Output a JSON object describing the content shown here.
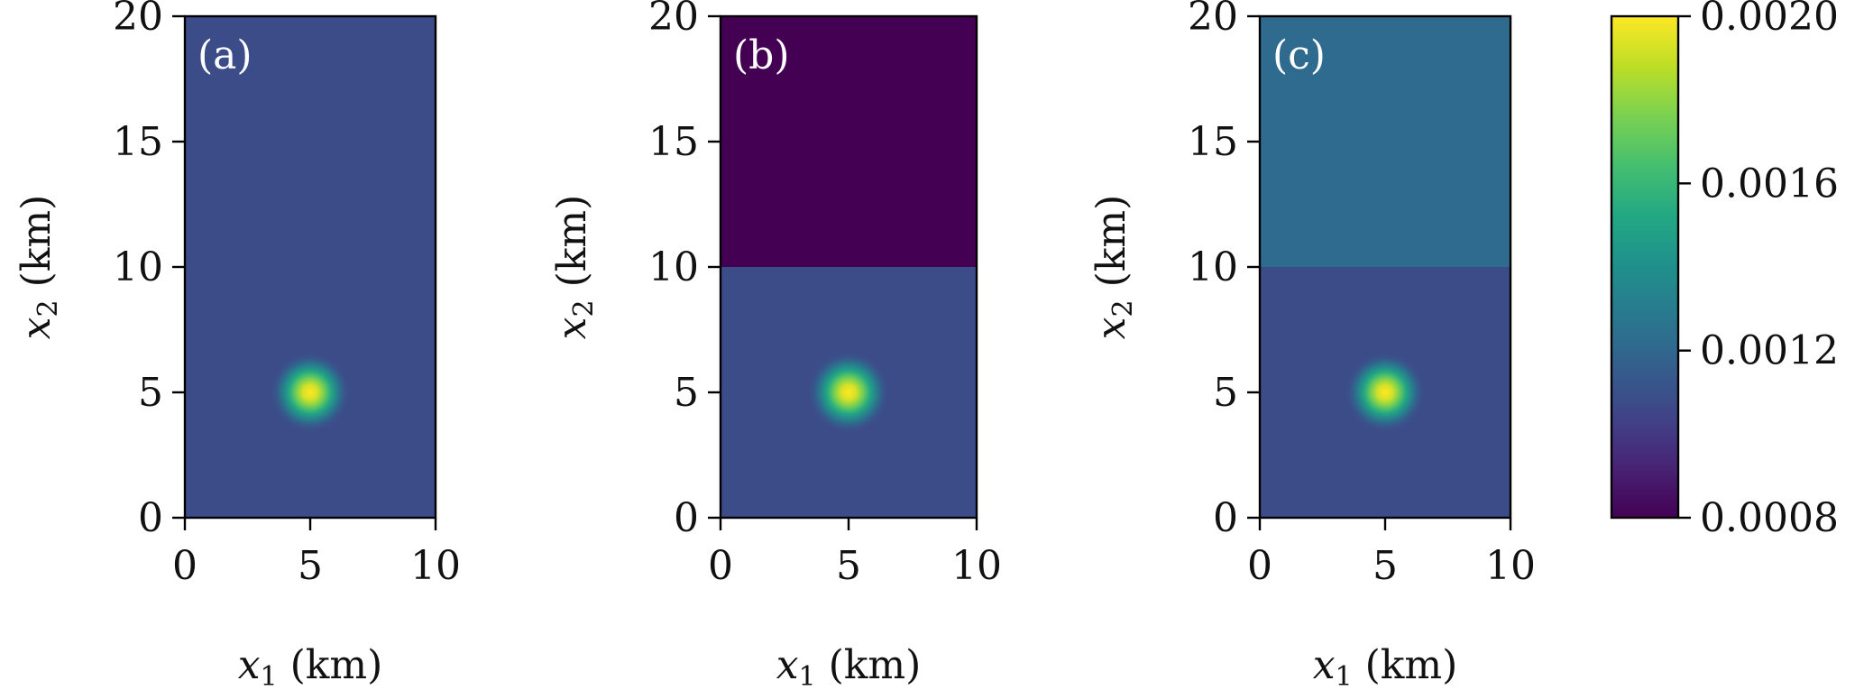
{
  "chart_data": [
    {
      "type": "heatmap",
      "panel_label": "(a)",
      "xlabel_var": "x",
      "xlabel_sub": "1",
      "xlabel_unit": " (km)",
      "ylabel_var": "x",
      "ylabel_sub": "2",
      "ylabel_unit": " (km)",
      "xlim": [
        0,
        10
      ],
      "ylim": [
        0,
        20
      ],
      "xticks": [
        "0",
        "5",
        "10"
      ],
      "yticks": [
        "0",
        "5",
        "10",
        "15",
        "20"
      ],
      "regions": [
        {
          "y_range": [
            0,
            20
          ],
          "value": 0.00108
        }
      ],
      "anomaly": {
        "center": [
          5,
          5
        ],
        "peak_value": 0.002,
        "radius_km": 1.3
      }
    },
    {
      "type": "heatmap",
      "panel_label": "(b)",
      "xlabel_var": "x",
      "xlabel_sub": "1",
      "xlabel_unit": " (km)",
      "ylabel_var": "x",
      "ylabel_sub": "2",
      "ylabel_unit": " (km)",
      "xlim": [
        0,
        10
      ],
      "ylim": [
        0,
        20
      ],
      "xticks": [
        "0",
        "5",
        "10"
      ],
      "yticks": [
        "0",
        "5",
        "10",
        "15",
        "20"
      ],
      "regions": [
        {
          "y_range": [
            0,
            10
          ],
          "value": 0.00108
        },
        {
          "y_range": [
            10,
            20
          ],
          "value": 0.0008
        }
      ],
      "anomaly": {
        "center": [
          5,
          5
        ],
        "peak_value": 0.002,
        "radius_km": 1.3
      }
    },
    {
      "type": "heatmap",
      "panel_label": "(c)",
      "xlabel_var": "x",
      "xlabel_sub": "1",
      "xlabel_unit": " (km)",
      "ylabel_var": "x",
      "ylabel_sub": "2",
      "ylabel_unit": " (km)",
      "xlim": [
        0,
        10
      ],
      "ylim": [
        0,
        20
      ],
      "xticks": [
        "0",
        "5",
        "10"
      ],
      "yticks": [
        "0",
        "5",
        "10",
        "15",
        "20"
      ],
      "regions": [
        {
          "y_range": [
            0,
            10
          ],
          "value": 0.00108
        },
        {
          "y_range": [
            10,
            20
          ],
          "value": 0.00122
        }
      ],
      "anomaly": {
        "center": [
          5,
          5
        ],
        "peak_value": 0.002,
        "radius_km": 1.3
      }
    }
  ],
  "colorbar": {
    "colormap": "viridis",
    "range": [
      0.0008,
      0.002
    ],
    "ticks": [
      {
        "value": 0.002,
        "label": "0.0020"
      },
      {
        "value": 0.0016,
        "label": "0.0016"
      },
      {
        "value": 0.0012,
        "label": "0.0012"
      },
      {
        "value": 0.0008,
        "label": "0.0008"
      }
    ]
  }
}
